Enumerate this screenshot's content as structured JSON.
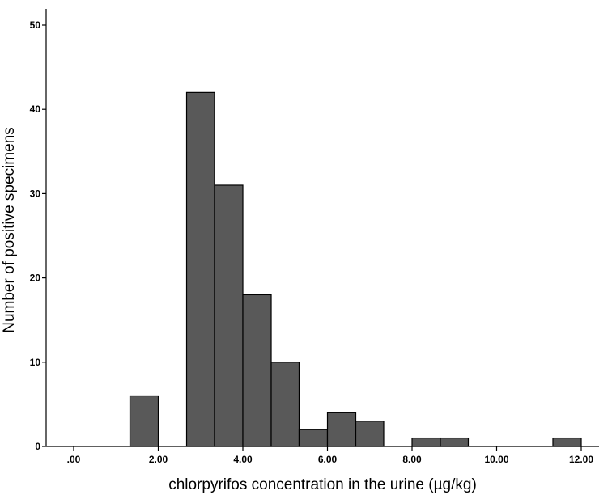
{
  "chart_data": {
    "type": "bar",
    "subtype": "histogram",
    "title": "",
    "xlabel": "chlorpyrifos concentration in the urine (µg/kg)",
    "ylabel": "Number of positive specimens",
    "xlim": [
      -0.6,
      12.6
    ],
    "ylim": [
      0,
      50
    ],
    "bin_width": 0.667,
    "bins": [
      {
        "start": 1.33,
        "end": 2.0,
        "count": 6
      },
      {
        "start": 2.67,
        "end": 3.33,
        "count": 42
      },
      {
        "start": 3.33,
        "end": 4.0,
        "count": 31
      },
      {
        "start": 4.0,
        "end": 4.67,
        "count": 18
      },
      {
        "start": 4.67,
        "end": 5.33,
        "count": 10
      },
      {
        "start": 5.33,
        "end": 6.0,
        "count": 2
      },
      {
        "start": 6.0,
        "end": 6.67,
        "count": 4
      },
      {
        "start": 6.67,
        "end": 7.33,
        "count": 3
      },
      {
        "start": 8.0,
        "end": 8.67,
        "count": 1
      },
      {
        "start": 8.67,
        "end": 9.33,
        "count": 1
      },
      {
        "start": 11.33,
        "end": 12.0,
        "count": 1
      }
    ],
    "x_ticks": [
      {
        "value": 0,
        "label": ".00"
      },
      {
        "value": 2,
        "label": "2.00"
      },
      {
        "value": 4,
        "label": "4.00"
      },
      {
        "value": 6,
        "label": "6.00"
      },
      {
        "value": 8,
        "label": "8.00"
      },
      {
        "value": 10,
        "label": "10.00"
      },
      {
        "value": 12,
        "label": "12.00"
      }
    ],
    "y_ticks": [
      {
        "value": 0,
        "label": "0"
      },
      {
        "value": 10,
        "label": "10"
      },
      {
        "value": 20,
        "label": "20"
      },
      {
        "value": 30,
        "label": "30"
      },
      {
        "value": 40,
        "label": "40"
      },
      {
        "value": 50,
        "label": "50"
      }
    ],
    "colors": {
      "bar_fill": "#595959",
      "bar_stroke": "#000000",
      "background": "#ffffff"
    },
    "grid": false,
    "legend": "none"
  }
}
